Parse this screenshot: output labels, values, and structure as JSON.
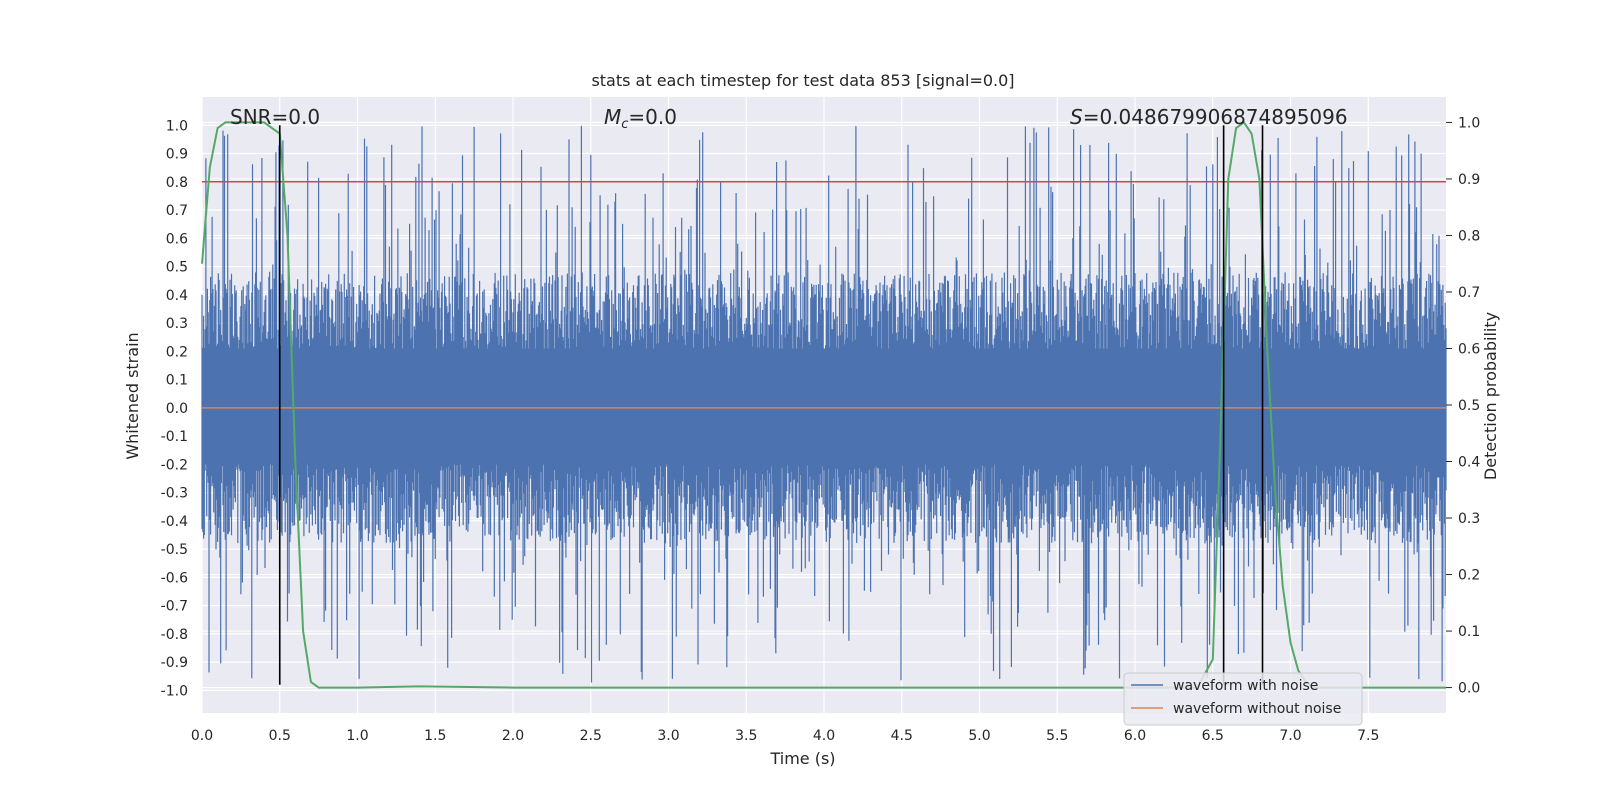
{
  "chart_data": {
    "type": "line",
    "title": "stats at each timestep for test data 853 [signal=0.0]",
    "xlabel": "Time (s)",
    "ylabel": "Whitened strain",
    "y2label": "Detection probability",
    "xlim": [
      0.0,
      8.0
    ],
    "ylim": [
      -1.08,
      1.1
    ],
    "y2lim": [
      -0.045,
      1.045
    ],
    "grid": true,
    "x_ticks": [
      "0.0",
      "0.5",
      "1.0",
      "1.5",
      "2.0",
      "2.5",
      "3.0",
      "3.5",
      "4.0",
      "4.5",
      "5.0",
      "5.5",
      "6.0",
      "6.5",
      "7.0",
      "7.5"
    ],
    "y_ticks": [
      "1.0",
      "0.9",
      "0.8",
      "0.7",
      "0.6",
      "0.5",
      "0.4",
      "0.3",
      "0.2",
      "0.1",
      "0.0",
      "-0.1",
      "-0.2",
      "-0.3",
      "-0.4",
      "-0.5",
      "-0.6",
      "-0.7",
      "-0.8",
      "-0.9",
      "-1.0"
    ],
    "y2_ticks": [
      "1.0",
      "0.9",
      "0.8",
      "0.7",
      "0.6",
      "0.5",
      "0.4",
      "0.3",
      "0.2",
      "0.1",
      "0.0"
    ],
    "annotations": {
      "snr": "SNR=0.0",
      "mc_symbol": "M",
      "mc_sub": "c",
      "mc_value": "=0.0",
      "s_symbol": "S",
      "s_value": "=0.048679906874895096"
    },
    "legend": {
      "position": "lower-right",
      "entries": [
        "waveform with noise",
        "waveform without noise"
      ]
    },
    "colors": {
      "noise": "#4c72b0",
      "clean": "#dd8452",
      "probability": "#55a868",
      "threshold": "#c44e52",
      "boundary": "#000000",
      "background": "#eaeaf2",
      "grid": "#ffffff"
    },
    "series": [
      {
        "name": "waveform with noise",
        "axis": "left",
        "description_range": [
          -0.98,
          1.0
        ],
        "baseline_amplitude": 0.4
      },
      {
        "name": "waveform without noise",
        "axis": "left",
        "x": [
          0.0,
          8.0
        ],
        "y": [
          0.0,
          0.0
        ]
      },
      {
        "name": "detection probability",
        "axis": "right",
        "x": [
          0.0,
          0.05,
          0.1,
          0.15,
          0.2,
          0.3,
          0.4,
          0.45,
          0.5,
          0.55,
          0.6,
          0.65,
          0.7,
          0.75,
          0.8,
          1.0,
          1.4,
          2.0,
          3.0,
          4.0,
          5.0,
          6.0,
          6.4,
          6.5,
          6.55,
          6.6,
          6.65,
          6.7,
          6.75,
          6.8,
          6.85,
          6.9,
          6.95,
          7.0,
          7.05,
          7.1,
          7.15,
          7.2,
          7.5,
          8.0
        ],
        "y": [
          0.75,
          0.92,
          0.99,
          1.0,
          1.0,
          1.0,
          1.0,
          0.99,
          0.98,
          0.8,
          0.4,
          0.1,
          0.01,
          0.0,
          0.0,
          0.0,
          0.002,
          0.0,
          0.0,
          0.0,
          0.0,
          0.0,
          0.0,
          0.05,
          0.45,
          0.9,
          0.99,
          1.0,
          0.98,
          0.9,
          0.6,
          0.35,
          0.18,
          0.08,
          0.03,
          0.01,
          0.0,
          0.0,
          0.0,
          0.0
        ]
      },
      {
        "name": "threshold",
        "axis": "left",
        "y": 0.8
      }
    ],
    "boundaries": [
      {
        "x": 0.5,
        "y_top": 1.0,
        "y_bottom": -0.98
      },
      {
        "x": 6.57,
        "y_top": 1.0,
        "y_bottom": -0.98
      },
      {
        "x": 6.82,
        "y_top": 1.0,
        "y_bottom": -0.98
      }
    ]
  }
}
